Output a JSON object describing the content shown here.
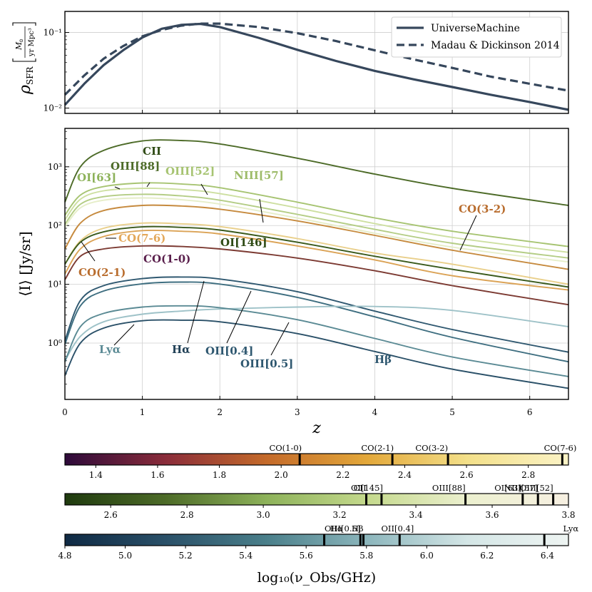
{
  "chart_data": [
    {
      "type": "line",
      "ylabel": "ρ_SFR [M_⊙ / yr Mpc³]",
      "yscale": "log",
      "xlim": [
        0,
        6.5
      ],
      "ylim": [
        0.0085,
        0.19
      ],
      "yticks": [
        {
          "v": 0.01,
          "label": "10⁻²"
        },
        {
          "v": 0.1,
          "label": "10⁻¹"
        }
      ],
      "grid": true,
      "legend_placement": "top-right",
      "series": [
        {
          "name": "UniverseMachine",
          "style": "solid",
          "color": "#36475c",
          "x": [
            0,
            0.25,
            0.5,
            0.75,
            1.0,
            1.25,
            1.5,
            1.75,
            2.0,
            2.5,
            3.0,
            3.5,
            4.0,
            4.5,
            5.0,
            5.5,
            6.0,
            6.5
          ],
          "y": [
            0.011,
            0.021,
            0.037,
            0.058,
            0.086,
            0.112,
            0.126,
            0.13,
            0.118,
            0.085,
            0.059,
            0.042,
            0.031,
            0.024,
            0.019,
            0.015,
            0.012,
            0.0095
          ]
        },
        {
          "name": "Madau & Dickinson 2014",
          "style": "dashed",
          "color": "#36475c",
          "x": [
            0,
            0.25,
            0.5,
            0.75,
            1.0,
            1.25,
            1.5,
            1.75,
            2.0,
            2.5,
            3.0,
            3.5,
            4.0,
            4.5,
            5.0,
            5.5,
            6.0,
            6.5
          ],
          "y": [
            0.015,
            0.027,
            0.045,
            0.066,
            0.089,
            0.108,
            0.123,
            0.131,
            0.131,
            0.118,
            0.098,
            0.077,
            0.058,
            0.044,
            0.034,
            0.026,
            0.021,
            0.017
          ]
        }
      ]
    },
    {
      "type": "line",
      "xlabel": "z",
      "ylabel": "⟨I⟩ [Jy/sr]",
      "yscale": "log",
      "xlim": [
        0,
        6.5
      ],
      "ylim": [
        0.11,
        4500
      ],
      "xticks": [
        0,
        1,
        2,
        3,
        4,
        5,
        6
      ],
      "yticks": [
        {
          "v": 1,
          "label": "10⁰"
        },
        {
          "v": 10,
          "label": "10¹"
        },
        {
          "v": 100,
          "label": "10²"
        },
        {
          "v": 1000,
          "label": "10³"
        }
      ],
      "grid": true,
      "x": [
        0,
        0.2,
        0.5,
        1.0,
        1.5,
        2.0,
        3.0,
        4.0,
        5.0,
        6.5
      ],
      "series": [
        {
          "name": "CII",
          "color": "#4d6b28",
          "y": [
            250,
            1000,
            1900,
            2750,
            2800,
            2450,
            1400,
            750,
            430,
            220
          ]
        },
        {
          "name": "OIII[88]",
          "color": "#a7c472",
          "y": [
            150,
            330,
            460,
            530,
            510,
            440,
            250,
            135,
            80,
            44
          ]
        },
        {
          "name": "OIII[52]",
          "color": "#cddfa0",
          "y": [
            125,
            280,
            390,
            430,
            410,
            350,
            200,
            108,
            63,
            35
          ]
        },
        {
          "name": "NIII[57]",
          "color": "#b4cd85",
          "y": [
            105,
            230,
            310,
            340,
            320,
            270,
            155,
            86,
            50,
            28
          ]
        },
        {
          "name": "OI[63]",
          "color": "#e6eec9",
          "y": [
            95,
            200,
            270,
            295,
            275,
            232,
            134,
            74,
            43,
            24
          ]
        },
        {
          "name": "CO(7-6)",
          "color": "#e9cf8a",
          "y": [
            22,
            55,
            90,
            110,
            107,
            96,
            60,
            34,
            22,
            10
          ]
        },
        {
          "name": "CO(3-2)",
          "color": "#c68a3e",
          "y": [
            40,
            110,
            180,
            220,
            215,
            190,
            120,
            68,
            38,
            18
          ]
        },
        {
          "name": "CO(2-1)",
          "color": "#dba356",
          "y": [
            15,
            40,
            65,
            82,
            80,
            72,
            45,
            26,
            14,
            8
          ]
        },
        {
          "name": "OI[146]",
          "color": "#3a5a1c",
          "y": [
            22,
            52,
            78,
            95,
            93,
            84,
            52,
            30,
            18,
            9
          ]
        },
        {
          "name": "CO(1-0)",
          "color": "#7c3a32",
          "y": [
            12,
            30,
            40,
            45,
            44,
            40,
            28,
            17,
            9.5,
            4.5
          ]
        },
        {
          "name": "Hα",
          "color": "#2f5870",
          "y": [
            1.1,
            5.3,
            9.5,
            12.5,
            13.3,
            12.3,
            7.5,
            3.5,
            1.7,
            0.7
          ]
        },
        {
          "name": "OII[0.4]",
          "color": "#3e6e80",
          "y": [
            0.95,
            4.3,
            7.7,
            10.2,
            10.9,
            10.1,
            6.0,
            2.8,
            1.25,
            0.48
          ]
        },
        {
          "name": "Lyα",
          "color": "#9ec2c8",
          "y": [
            0.5,
            1.3,
            2.3,
            3.1,
            3.5,
            3.8,
            4.1,
            4.2,
            3.6,
            1.9
          ]
        },
        {
          "name": "OIII[0.5]",
          "color": "#5a8a94",
          "y": [
            0.48,
            1.9,
            3.2,
            4.1,
            4.3,
            4.0,
            2.5,
            1.2,
            0.58,
            0.27
          ]
        },
        {
          "name": "Hβ",
          "color": "#2a5068",
          "y": [
            0.28,
            1.0,
            1.8,
            2.4,
            2.45,
            2.3,
            1.45,
            0.72,
            0.36,
            0.17
          ]
        }
      ],
      "labels": [
        {
          "text": "CII",
          "color": "#2e4a14"
        },
        {
          "text": "OIII[88]",
          "color": "#4d6b28"
        },
        {
          "text": "OI[63]",
          "color": "#8db25a"
        },
        {
          "text": "OIII[52]",
          "color": "#a7c472"
        },
        {
          "text": "NIII[57]",
          "color": "#9dbb68"
        },
        {
          "text": "CO(3-2)",
          "color": "#b96d2e"
        },
        {
          "text": "CO(7-6)",
          "color": "#e3a85a"
        },
        {
          "text": "OI[146]",
          "color": "#2e4a14"
        },
        {
          "text": "CO(1-0)",
          "color": "#5a1f4c"
        },
        {
          "text": "CO(2-1)",
          "color": "#b96d2e"
        },
        {
          "text": "Lyα",
          "color": "#5a8a94"
        },
        {
          "text": "Hα",
          "color": "#1f3f55"
        },
        {
          "text": "OII[0.4]",
          "color": "#2f5870"
        },
        {
          "text": "OIII[0.5]",
          "color": "#2f5870"
        },
        {
          "text": "Hβ",
          "color": "#2f5870"
        }
      ]
    },
    {
      "type": "colorbar",
      "range": [
        1.3,
        2.93
      ],
      "ticks": [
        1.4,
        1.6,
        1.8,
        2.0,
        2.2,
        2.4,
        2.6,
        2.8
      ],
      "colors": [
        "#2d0a3a",
        "#8a2c3a",
        "#c46a2a",
        "#e3a83a",
        "#f3e08a",
        "#fbf3c6"
      ],
      "markers": [
        {
          "v": 2.06,
          "label": "CO(1-0)"
        },
        {
          "v": 2.36,
          "label": "CO(2-1)"
        },
        {
          "v": 2.54,
          "label": "CO(3-2)"
        },
        {
          "v": 2.91,
          "label": "CO(7-6)"
        }
      ]
    },
    {
      "type": "colorbar",
      "range": [
        2.48,
        3.8
      ],
      "ticks": [
        2.6,
        2.8,
        3.0,
        3.2,
        3.4,
        3.6,
        3.8
      ],
      "colors": [
        "#1f3a0e",
        "#4d6b28",
        "#8db25a",
        "#c4d98c",
        "#ecf0cf",
        "#f7f0e2"
      ],
      "markers": [
        {
          "v": 3.27,
          "label": "CII"
        },
        {
          "v": 3.31,
          "label": "OI[145]"
        },
        {
          "v": 3.53,
          "label": "OIII[88]"
        },
        {
          "v": 3.68,
          "label": "OI[63]"
        },
        {
          "v": 3.72,
          "label": "NIII[57]"
        },
        {
          "v": 3.76,
          "label": "OIII[52]"
        }
      ]
    },
    {
      "type": "colorbar",
      "range": [
        4.8,
        6.47
      ],
      "ticks": [
        4.8,
        5.0,
        5.2,
        5.4,
        5.6,
        5.8,
        6.0,
        6.2,
        6.4
      ],
      "colors": [
        "#0f2a44",
        "#2a5068",
        "#4a7f8a",
        "#8cb6bc",
        "#d4e6e6",
        "#eef4f2"
      ],
      "markers": [
        {
          "v": 5.66,
          "label": "Hα"
        },
        {
          "v": 5.78,
          "label": "OIII[0.5]"
        },
        {
          "v": 5.79,
          "label": "Hβ"
        },
        {
          "v": 5.91,
          "label": "OII[0.4]"
        },
        {
          "v": 6.39,
          "label": "Lyα"
        }
      ],
      "xlabel": "log₁₀(ν_Obs/GHz)"
    }
  ]
}
